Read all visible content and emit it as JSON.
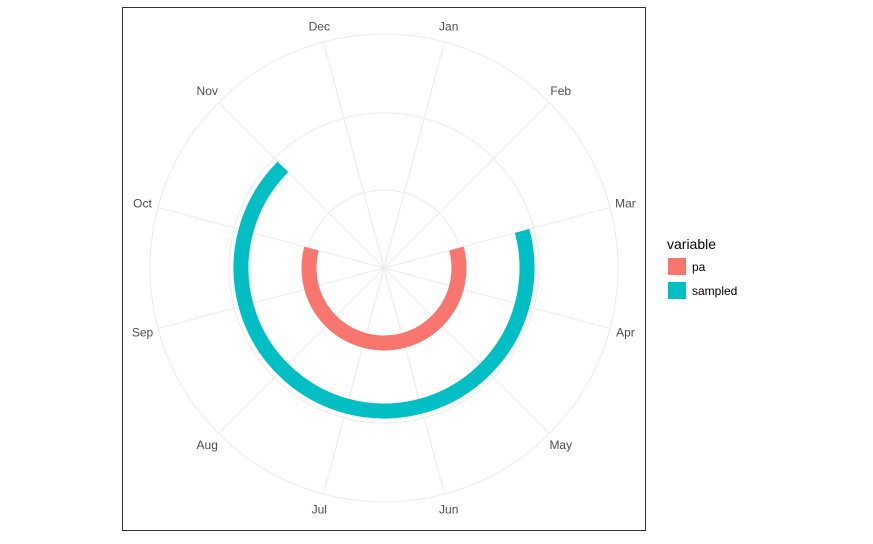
{
  "chart_data": {
    "type": "radial-bar",
    "title": "",
    "xlabel": "",
    "ylabel": "",
    "grid": true,
    "legend_position": "right",
    "months": [
      "Jan",
      "Feb",
      "Mar",
      "Apr",
      "May",
      "Jun",
      "Jul",
      "Aug",
      "Sep",
      "Oct",
      "Nov",
      "Dec"
    ],
    "legend": {
      "title": "variable"
    },
    "series": [
      {
        "name": "pa",
        "color": "#F8766D",
        "ring": 1,
        "start_month": "Mar",
        "end_month": "Oct"
      },
      {
        "name": "sampled",
        "color": "#00BFC4",
        "ring": 2,
        "start_month": "Mar",
        "end_month": "Nov"
      }
    ]
  }
}
